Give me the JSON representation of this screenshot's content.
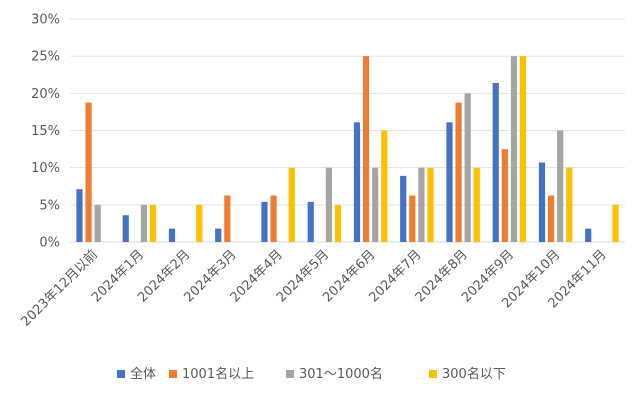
{
  "chart_data": {
    "type": "bar",
    "categories": [
      "2023年12月以前",
      "2024年1月",
      "2024年2月",
      "2024年3月",
      "2024年4月",
      "2024年5月",
      "2024年6月",
      "2024年7月",
      "2024年8月",
      "2024年9月",
      "2024年10月",
      "2024年11月"
    ],
    "series": [
      {
        "name": "全体",
        "color": "#4472C4",
        "values": [
          7.1,
          3.6,
          1.8,
          1.8,
          5.4,
          5.4,
          16.1,
          8.9,
          16.1,
          21.4,
          10.7,
          1.8
        ]
      },
      {
        "name": "1001名以上",
        "color": "#ED7D31",
        "values": [
          18.75,
          0,
          0,
          6.25,
          6.25,
          0,
          25,
          6.25,
          18.75,
          12.5,
          6.25,
          0
        ]
      },
      {
        "name": "301～1000名",
        "color": "#A5A5A5",
        "values": [
          5,
          5,
          0,
          0,
          0,
          10,
          10,
          10,
          20,
          25,
          15,
          0
        ]
      },
      {
        "name": "300名以下",
        "color": "#FFC000",
        "values": [
          0,
          5,
          5,
          0,
          10,
          5,
          15,
          10,
          10,
          25,
          10,
          5
        ]
      }
    ],
    "y_ticks": [
      "0%",
      "5%",
      "10%",
      "15%",
      "20%",
      "25%",
      "30%"
    ],
    "ylim": [
      0,
      30
    ],
    "grid": true,
    "legend_position": "bottom"
  }
}
